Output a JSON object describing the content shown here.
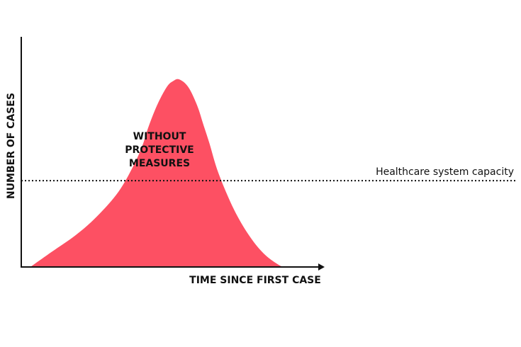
{
  "chart_data": {
    "type": "area",
    "xlabel": "TIME SINCE FIRST CASE",
    "ylabel": "NUMBER OF CASES",
    "xlim": [
      0,
      100
    ],
    "ylim": [
      0,
      100
    ],
    "grid": false,
    "series": [
      {
        "label_lines": [
          "WITHOUT",
          "PROTECTIVE",
          "MEASURES"
        ],
        "color": "#fd5063",
        "x": [
          3,
          10,
          18,
          25,
          32,
          37,
          40,
          42,
          45,
          48,
          50,
          52,
          55,
          58,
          60,
          62,
          65,
          70,
          75,
          80,
          85,
          87
        ],
        "y": [
          0,
          8,
          17,
          27,
          40,
          54,
          65,
          75,
          87,
          96,
          99,
          100,
          96,
          86,
          76,
          66,
          50,
          31,
          17,
          7,
          1,
          0
        ]
      }
    ],
    "reference_line": {
      "label": "Healthcare system capacity",
      "y": 46
    },
    "colors": {
      "axis": "#111111",
      "capacity_line": "#111111"
    }
  }
}
